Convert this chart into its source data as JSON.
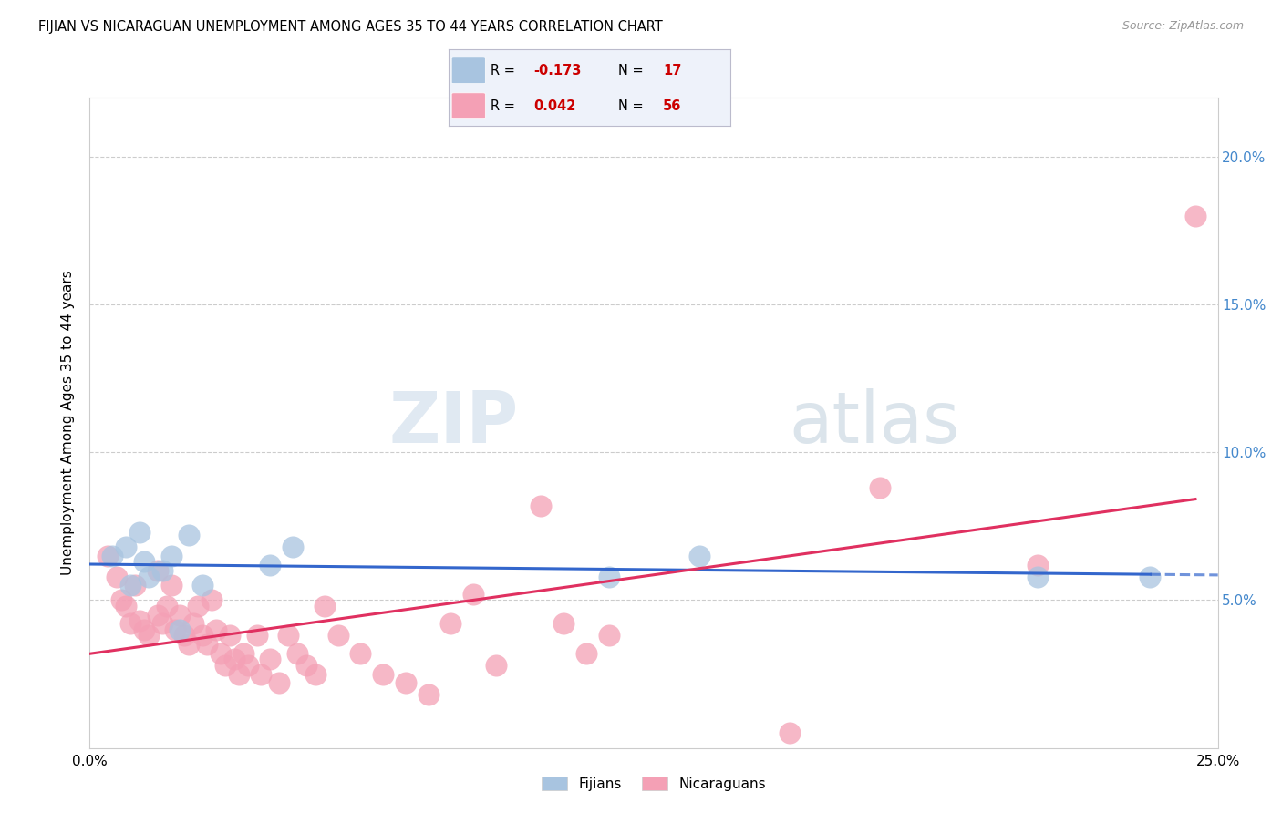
{
  "title": "FIJIAN VS NICARAGUAN UNEMPLOYMENT AMONG AGES 35 TO 44 YEARS CORRELATION CHART",
  "source": "Source: ZipAtlas.com",
  "ylabel": "Unemployment Among Ages 35 to 44 years",
  "legend_label1": "Fijians",
  "legend_label2": "Nicaraguans",
  "r_fijian": -0.173,
  "n_fijian": 17,
  "r_nicaraguan": 0.042,
  "n_nicaraguan": 56,
  "fijian_color": "#a8c4e0",
  "fijian_edge_color": "#a8c4e0",
  "nicaraguan_color": "#f4a0b5",
  "nicaraguan_edge_color": "#f4a0b5",
  "fijian_line_color": "#3366cc",
  "nicaraguan_line_color": "#e03060",
  "watermark_zip_color": "#c5d8e8",
  "watermark_atlas_color": "#b8c8d8",
  "xlim": [
    0.0,
    0.25
  ],
  "ylim": [
    0.0,
    0.22
  ],
  "yticks": [
    0.0,
    0.05,
    0.1,
    0.15,
    0.2
  ],
  "ytick_labels_right": [
    "",
    "5.0%",
    "10.0%",
    "15.0%",
    "20.0%"
  ],
  "xticks": [
    0.0,
    0.05,
    0.1,
    0.15,
    0.2,
    0.25
  ],
  "xtick_labels": [
    "0.0%",
    "",
    "",
    "",
    "",
    "25.0%"
  ],
  "fijian_x": [
    0.005,
    0.008,
    0.009,
    0.011,
    0.012,
    0.013,
    0.016,
    0.018,
    0.02,
    0.022,
    0.025,
    0.04,
    0.045,
    0.115,
    0.135,
    0.21,
    0.235
  ],
  "fijian_y": [
    0.065,
    0.068,
    0.055,
    0.073,
    0.063,
    0.058,
    0.06,
    0.065,
    0.04,
    0.072,
    0.055,
    0.062,
    0.068,
    0.058,
    0.065,
    0.058,
    0.058
  ],
  "nicaraguan_x": [
    0.004,
    0.006,
    0.007,
    0.008,
    0.009,
    0.01,
    0.011,
    0.012,
    0.013,
    0.015,
    0.015,
    0.016,
    0.017,
    0.018,
    0.019,
    0.02,
    0.021,
    0.022,
    0.023,
    0.024,
    0.025,
    0.026,
    0.027,
    0.028,
    0.029,
    0.03,
    0.031,
    0.032,
    0.033,
    0.034,
    0.035,
    0.037,
    0.038,
    0.04,
    0.042,
    0.044,
    0.046,
    0.048,
    0.05,
    0.052,
    0.055,
    0.06,
    0.065,
    0.07,
    0.075,
    0.08,
    0.085,
    0.09,
    0.1,
    0.105,
    0.11,
    0.115,
    0.155,
    0.175,
    0.21,
    0.245
  ],
  "nicaraguan_y": [
    0.065,
    0.058,
    0.05,
    0.048,
    0.042,
    0.055,
    0.043,
    0.04,
    0.038,
    0.06,
    0.045,
    0.042,
    0.048,
    0.055,
    0.04,
    0.045,
    0.038,
    0.035,
    0.042,
    0.048,
    0.038,
    0.035,
    0.05,
    0.04,
    0.032,
    0.028,
    0.038,
    0.03,
    0.025,
    0.032,
    0.028,
    0.038,
    0.025,
    0.03,
    0.022,
    0.038,
    0.032,
    0.028,
    0.025,
    0.048,
    0.038,
    0.032,
    0.025,
    0.022,
    0.018,
    0.042,
    0.052,
    0.028,
    0.082,
    0.042,
    0.032,
    0.038,
    0.005,
    0.088,
    0.062,
    0.18
  ]
}
